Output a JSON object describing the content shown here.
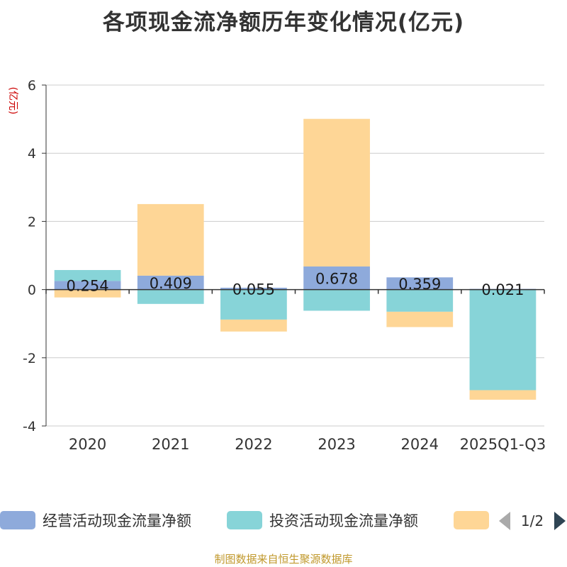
{
  "chart_data": {
    "type": "bar",
    "stacked": true,
    "title": "各项现金流净额历年变化情况(亿元)",
    "ylabel": "(亿元)",
    "xlabel": "",
    "ylim": [
      -4,
      6
    ],
    "yticks": [
      -4,
      -2,
      0,
      2,
      4,
      6
    ],
    "grid": true,
    "categories": [
      "2020",
      "2021",
      "2022",
      "2023",
      "2024",
      "2025Q1-Q3"
    ],
    "series": [
      {
        "name": "经营活动现金流量净额",
        "color": "#8eaadb",
        "values": [
          0.254,
          0.409,
          0.055,
          0.678,
          0.359,
          0.021
        ],
        "labels": [
          "0.254",
          "0.409",
          "0.055",
          "0.678",
          "0.359",
          "0.021"
        ]
      },
      {
        "name": "投资活动现金流量净额",
        "color": "#87d4d8",
        "values": [
          0.32,
          -0.42,
          -0.88,
          -0.62,
          -0.65,
          -2.95
        ]
      },
      {
        "name": "",
        "color": "#fed696",
        "values": [
          -0.23,
          2.1,
          -0.35,
          4.33,
          -0.45,
          -0.28
        ]
      }
    ],
    "legend_position": "bottom",
    "legend_pager": "1/2"
  },
  "footer": "制图数据来自恒生聚源数据库"
}
